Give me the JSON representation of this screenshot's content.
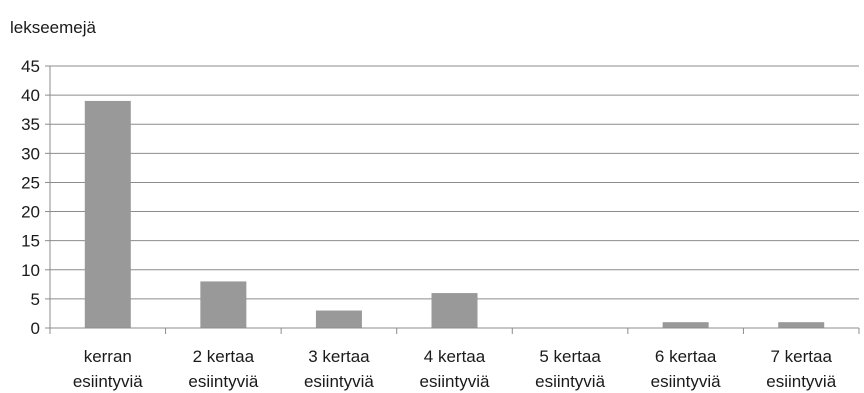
{
  "chart_data": {
    "type": "bar",
    "title": "",
    "ylabel": "lekseemejä",
    "xlabel": "",
    "categories": [
      [
        "kerran",
        "esiintyviä"
      ],
      [
        "2 kertaa",
        "esiintyviä"
      ],
      [
        "3 kertaa",
        "esiintyviä"
      ],
      [
        "4 kertaa",
        "esiintyviä"
      ],
      [
        "5 kertaa",
        "esiintyviä"
      ],
      [
        "6 kertaa",
        "esiintyviä"
      ],
      [
        "7 kertaa",
        "esiintyviä"
      ]
    ],
    "values": [
      39,
      8,
      3,
      6,
      0,
      1,
      1
    ],
    "ylim": [
      0,
      45
    ],
    "yticks": [
      0,
      5,
      10,
      15,
      20,
      25,
      30,
      35,
      40,
      45
    ],
    "grid": true,
    "legend": "none",
    "bar_color": "#999999",
    "grid_color": "#8c8c8c"
  }
}
